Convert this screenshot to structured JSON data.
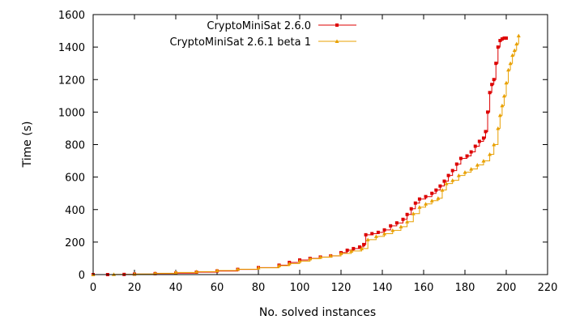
{
  "chart_data": {
    "type": "line",
    "xlabel": "No. solved instances",
    "ylabel": "Time (s)",
    "xlim": [
      0,
      220
    ],
    "ylim": [
      0,
      1600
    ],
    "xticks": [
      0,
      20,
      40,
      60,
      80,
      100,
      120,
      140,
      160,
      180,
      200,
      220
    ],
    "yticks": [
      0,
      200,
      400,
      600,
      800,
      1000,
      1200,
      1400,
      1600
    ],
    "grid": false,
    "legend_position": "top",
    "series": [
      {
        "name": "CryptoMiniSat 2.6.0",
        "color": "#dd0000",
        "marker": "square",
        "points": [
          [
            0,
            0
          ],
          [
            7,
            0
          ],
          [
            15,
            1
          ],
          [
            20,
            3
          ],
          [
            30,
            6
          ],
          [
            40,
            9
          ],
          [
            50,
            15
          ],
          [
            60,
            22
          ],
          [
            70,
            32
          ],
          [
            80,
            43
          ],
          [
            90,
            58
          ],
          [
            95,
            75
          ],
          [
            100,
            90
          ],
          [
            105,
            100
          ],
          [
            110,
            108
          ],
          [
            115,
            115
          ],
          [
            120,
            135
          ],
          [
            123,
            150
          ],
          [
            126,
            160
          ],
          [
            129,
            170
          ],
          [
            131,
            185
          ],
          [
            132,
            245
          ],
          [
            135,
            252
          ],
          [
            138,
            260
          ],
          [
            141,
            275
          ],
          [
            144,
            300
          ],
          [
            147,
            318
          ],
          [
            150,
            340
          ],
          [
            152,
            370
          ],
          [
            154,
            405
          ],
          [
            156,
            440
          ],
          [
            158,
            465
          ],
          [
            161,
            480
          ],
          [
            164,
            500
          ],
          [
            166,
            520
          ],
          [
            168,
            545
          ],
          [
            170,
            575
          ],
          [
            172,
            610
          ],
          [
            174,
            640
          ],
          [
            176,
            680
          ],
          [
            178,
            715
          ],
          [
            181,
            730
          ],
          [
            183,
            755
          ],
          [
            185,
            790
          ],
          [
            187,
            820
          ],
          [
            189,
            840
          ],
          [
            190,
            880
          ],
          [
            191,
            1000
          ],
          [
            192,
            1120
          ],
          [
            193,
            1170
          ],
          [
            194,
            1200
          ],
          [
            195,
            1300
          ],
          [
            196,
            1400
          ],
          [
            197,
            1440
          ],
          [
            198,
            1450
          ],
          [
            199,
            1455
          ],
          [
            200,
            1455
          ]
        ]
      },
      {
        "name": "CryptoMiniSat 2.6.1 beta 1",
        "color": "#e8a000",
        "marker": "triangle",
        "points": [
          [
            0,
            0
          ],
          [
            10,
            1
          ],
          [
            20,
            4
          ],
          [
            30,
            8
          ],
          [
            40,
            13
          ],
          [
            50,
            18
          ],
          [
            60,
            25
          ],
          [
            70,
            33
          ],
          [
            80,
            42
          ],
          [
            90,
            55
          ],
          [
            95,
            68
          ],
          [
            100,
            83
          ],
          [
            105,
            98
          ],
          [
            110,
            107
          ],
          [
            115,
            115
          ],
          [
            120,
            130
          ],
          [
            125,
            145
          ],
          [
            130,
            160
          ],
          [
            133,
            215
          ],
          [
            137,
            235
          ],
          [
            141,
            252
          ],
          [
            145,
            272
          ],
          [
            149,
            295
          ],
          [
            152,
            325
          ],
          [
            155,
            375
          ],
          [
            158,
            415
          ],
          [
            161,
            435
          ],
          [
            164,
            455
          ],
          [
            167,
            470
          ],
          [
            169,
            520
          ],
          [
            171,
            560
          ],
          [
            174,
            580
          ],
          [
            177,
            610
          ],
          [
            180,
            630
          ],
          [
            183,
            650
          ],
          [
            186,
            675
          ],
          [
            189,
            700
          ],
          [
            192,
            740
          ],
          [
            194,
            800
          ],
          [
            196,
            900
          ],
          [
            197,
            980
          ],
          [
            198,
            1040
          ],
          [
            199,
            1100
          ],
          [
            200,
            1180
          ],
          [
            201,
            1260
          ],
          [
            202,
            1300
          ],
          [
            203,
            1350
          ],
          [
            204,
            1380
          ],
          [
            205,
            1420
          ],
          [
            206,
            1470
          ]
        ]
      }
    ]
  }
}
